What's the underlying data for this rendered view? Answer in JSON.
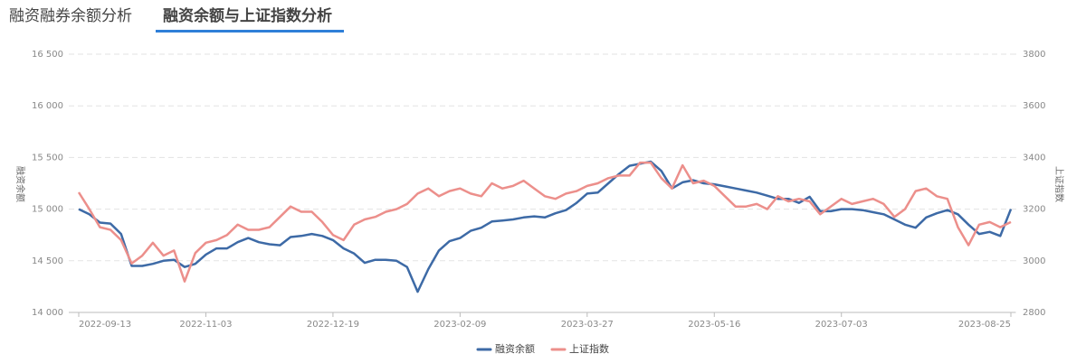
{
  "tabs": [
    "融资融券余额分析",
    "融资余额与上证指数分析"
  ],
  "chart_data": {
    "type": "line",
    "y_label": "融资余额",
    "y2_label": "上证指数",
    "categories": [
      "2022-09-13",
      null,
      null,
      null,
      null,
      null,
      null,
      null,
      null,
      null,
      null,
      null,
      "2022-11-03",
      null,
      null,
      null,
      null,
      null,
      null,
      null,
      null,
      null,
      null,
      null,
      "2022-12-19",
      null,
      null,
      null,
      null,
      null,
      null,
      null,
      null,
      null,
      null,
      null,
      "2023-02-09",
      null,
      null,
      null,
      null,
      null,
      null,
      null,
      null,
      null,
      null,
      null,
      "2023-03-27",
      null,
      null,
      null,
      null,
      null,
      null,
      null,
      null,
      null,
      null,
      null,
      "2023-05-16",
      null,
      null,
      null,
      null,
      null,
      null,
      null,
      null,
      null,
      null,
      null,
      "2023-07-03",
      null,
      null,
      null,
      null,
      null,
      null,
      null,
      null,
      null,
      null,
      null,
      null,
      null,
      null,
      null,
      "2023-08-25"
    ],
    "series": [
      {
        "name": "融资余额",
        "color": "#3d6aa6",
        "values": [
          15000,
          14950,
          14870,
          14860,
          14760,
          14450,
          14450,
          14470,
          14500,
          14510,
          14440,
          14470,
          14560,
          14620,
          14620,
          14680,
          14720,
          14680,
          14660,
          14650,
          14730,
          14740,
          14760,
          14740,
          14700,
          14620,
          14570,
          14480,
          14510,
          14510,
          14500,
          14440,
          14200,
          14420,
          14600,
          14690,
          14720,
          14790,
          14820,
          14880,
          14890,
          14900,
          14920,
          14930,
          14920,
          14960,
          14990,
          15060,
          15150,
          15160,
          15250,
          15340,
          15420,
          15440,
          15460,
          15370,
          15200,
          15260,
          15280,
          15250,
          15240,
          15220,
          15200,
          15180,
          15160,
          15130,
          15100,
          15100,
          15060,
          15120,
          14980,
          14980,
          15000,
          15000,
          14990,
          14970,
          14950,
          14900,
          14850,
          14820,
          14920,
          14960,
          14990,
          14950,
          14850,
          14760,
          14780,
          14740,
          15000
        ]
      },
      {
        "name": "上证指数",
        "color": "#ec8f8b",
        "axis": "y2",
        "values": [
          3265,
          3200,
          3130,
          3120,
          3080,
          2990,
          3020,
          3070,
          3020,
          3040,
          2920,
          3030,
          3070,
          3080,
          3100,
          3140,
          3120,
          3120,
          3130,
          3170,
          3210,
          3190,
          3190,
          3150,
          3100,
          3080,
          3140,
          3160,
          3170,
          3190,
          3200,
          3220,
          3260,
          3280,
          3250,
          3270,
          3280,
          3260,
          3250,
          3300,
          3280,
          3290,
          3310,
          3280,
          3250,
          3240,
          3260,
          3270,
          3290,
          3300,
          3320,
          3330,
          3330,
          3380,
          3380,
          3320,
          3280,
          3370,
          3300,
          3310,
          3290,
          3250,
          3210,
          3210,
          3220,
          3200,
          3250,
          3230,
          3240,
          3230,
          3180,
          3210,
          3240,
          3220,
          3230,
          3240,
          3220,
          3170,
          3200,
          3270,
          3280,
          3250,
          3240,
          3130,
          3060,
          3140,
          3150,
          3130,
          3150
        ]
      }
    ],
    "ylim": [
      14000,
      16500
    ],
    "yticks": [
      {
        "value": 14000,
        "label": "14 000"
      },
      {
        "value": 14500,
        "label": "14 500"
      },
      {
        "value": 15000,
        "label": "15 000"
      },
      {
        "value": 15500,
        "label": "15 500"
      },
      {
        "value": 16000,
        "label": "16 000"
      },
      {
        "value": 16500,
        "label": "16 500"
      }
    ],
    "y2lim": [
      2800,
      3800
    ],
    "y2ticks": [
      2800,
      3000,
      3200,
      3400,
      3600,
      3800
    ],
    "grid": true
  }
}
